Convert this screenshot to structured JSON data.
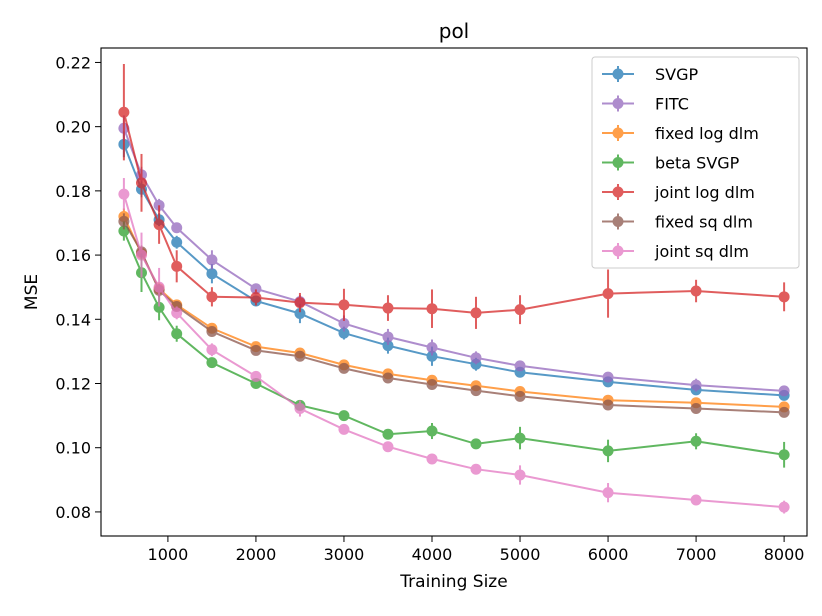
{
  "chart_data": {
    "type": "line",
    "title": "pol",
    "xlabel": "Training Size",
    "ylabel": "MSE",
    "xlim": [
      240,
      8260
    ],
    "ylim": [
      0.0725,
      0.2245
    ],
    "xticks": [
      1000,
      2000,
      3000,
      4000,
      5000,
      6000,
      7000,
      8000
    ],
    "xtick_labels": [
      "1000",
      "2000",
      "3000",
      "4000",
      "5000",
      "6000",
      "7000",
      "8000"
    ],
    "yticks": [
      0.08,
      0.1,
      0.12,
      0.14,
      0.16,
      0.18,
      0.2,
      0.22
    ],
    "ytick_labels": [
      "0.08",
      "0.10",
      "0.12",
      "0.14",
      "0.16",
      "0.18",
      "0.20",
      "0.22"
    ],
    "grid": false,
    "legend_position": "top-right",
    "x": [
      500,
      700,
      900,
      1100,
      1500,
      2000,
      2500,
      3000,
      3500,
      4000,
      4500,
      5000,
      6000,
      7000,
      8000
    ],
    "series": [
      {
        "name": "SVGP",
        "color": "#1f77b4",
        "values": [
          0.1945,
          0.1805,
          0.171,
          0.164,
          0.1542,
          0.1457,
          0.1418,
          0.1357,
          0.1318,
          0.1285,
          0.126,
          0.1235,
          0.1205,
          0.118,
          0.1163
        ],
        "errors": [
          0.004,
          0.0025,
          0.002,
          0.002,
          0.003,
          0.0015,
          0.003,
          0.002,
          0.0025,
          0.003,
          0.002,
          0.0015,
          0.0015,
          0.0015,
          0.0015
        ]
      },
      {
        "name": "FITC",
        "color": "#9467bd",
        "values": [
          0.1995,
          0.185,
          0.1755,
          0.1685,
          0.1585,
          0.1495,
          0.1455,
          0.1387,
          0.1345,
          0.1312,
          0.128,
          0.1255,
          0.122,
          0.1195,
          0.1177
        ],
        "errors": [
          0.004,
          0.0025,
          0.002,
          0.0015,
          0.003,
          0.0015,
          0.002,
          0.0025,
          0.0025,
          0.0025,
          0.002,
          0.0015,
          0.0015,
          0.002,
          0.0015
        ]
      },
      {
        "name": "fixed log dlm",
        "color": "#ff7f0e",
        "values": [
          0.172,
          0.1605,
          0.1495,
          0.1445,
          0.1372,
          0.1315,
          0.1295,
          0.1258,
          0.123,
          0.121,
          0.1193,
          0.1175,
          0.1148,
          0.114,
          0.1127
        ],
        "errors": [
          0.0025,
          0.002,
          0.002,
          0.0015,
          0.0015,
          0.001,
          0.001,
          0.001,
          0.001,
          0.001,
          0.001,
          0.001,
          0.001,
          0.001,
          0.001
        ]
      },
      {
        "name": "beta SVGP",
        "color": "#2ca02c",
        "values": [
          0.1675,
          0.1545,
          0.1437,
          0.1355,
          0.1265,
          0.12,
          0.1132,
          0.11,
          0.1042,
          0.1052,
          0.1012,
          0.103,
          0.099,
          0.102,
          0.0978
        ],
        "errors": [
          0.003,
          0.006,
          0.004,
          0.0025,
          0.0015,
          0.0015,
          0.001,
          0.001,
          0.0015,
          0.0025,
          0.0015,
          0.0035,
          0.0035,
          0.0025,
          0.004
        ]
      },
      {
        "name": "joint log dlm",
        "color": "#d62728",
        "values": [
          0.2045,
          0.1825,
          0.1695,
          0.1565,
          0.147,
          0.1468,
          0.1452,
          0.1445,
          0.1435,
          0.1433,
          0.142,
          0.143,
          0.148,
          0.1488,
          0.147
        ],
        "errors": [
          0.015,
          0.009,
          0.006,
          0.005,
          0.003,
          0.0025,
          0.003,
          0.005,
          0.004,
          0.006,
          0.005,
          0.0045,
          0.0075,
          0.0035,
          0.0045
        ]
      },
      {
        "name": "fixed sq dlm",
        "color": "#8c564b",
        "values": [
          0.1705,
          0.161,
          0.149,
          0.144,
          0.1362,
          0.1303,
          0.1285,
          0.1247,
          0.1217,
          0.1197,
          0.1178,
          0.116,
          0.1133,
          0.1122,
          0.111
        ],
        "errors": [
          0.0025,
          0.002,
          0.002,
          0.0015,
          0.0015,
          0.001,
          0.001,
          0.001,
          0.001,
          0.001,
          0.001,
          0.001,
          0.001,
          0.001,
          0.001
        ]
      },
      {
        "name": "joint sq dlm",
        "color": "#e377c2",
        "values": [
          0.179,
          0.16,
          0.15,
          0.142,
          0.1305,
          0.1222,
          0.1122,
          0.1057,
          0.1003,
          0.0965,
          0.0933,
          0.0915,
          0.086,
          0.0837,
          0.0815
        ],
        "errors": [
          0.005,
          0.007,
          0.006,
          0.002,
          0.002,
          0.0015,
          0.0025,
          0.001,
          0.001,
          0.001,
          0.001,
          0.003,
          0.003,
          0.001,
          0.002
        ]
      }
    ]
  }
}
